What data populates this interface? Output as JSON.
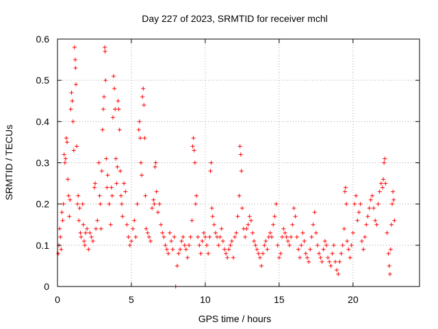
{
  "chart_data": {
    "type": "scatter",
    "title": "Day 227 of 2023, SRMTID for receiver mchl",
    "xlabel": "GPS time / hours",
    "ylabel": "SRMTID / TECUs",
    "xlim": [
      0,
      24.5
    ],
    "ylim": [
      0,
      0.6
    ],
    "xticks": [
      0,
      5,
      10,
      15,
      20
    ],
    "xtick_labels": [
      "0",
      "5",
      "10",
      "15",
      "20"
    ],
    "yticks": [
      0,
      0.1,
      0.2,
      0.3,
      0.4,
      0.5,
      0.6
    ],
    "ytick_labels": [
      "0",
      "0.1",
      "0.2",
      "0.3",
      "0.4",
      "0.5",
      "0.6"
    ],
    "grid": true,
    "marker": "+",
    "series": [
      {
        "name": "SRMTID",
        "color": "#ff0000",
        "points": [
          [
            0.05,
            0.08
          ],
          [
            0.1,
            0.1
          ],
          [
            0.15,
            0.14
          ],
          [
            0.2,
            0.12
          ],
          [
            0.25,
            0.09
          ],
          [
            0.3,
            0.18
          ],
          [
            0.35,
            0.16
          ],
          [
            0.4,
            0.2
          ],
          [
            0.45,
            0.32
          ],
          [
            0.5,
            0.3
          ],
          [
            0.55,
            0.31
          ],
          [
            0.6,
            0.36
          ],
          [
            0.65,
            0.35
          ],
          [
            0.7,
            0.26
          ],
          [
            0.75,
            0.22
          ],
          [
            0.8,
            0.17
          ],
          [
            0.85,
            0.21
          ],
          [
            0.9,
            0.43
          ],
          [
            0.95,
            0.47
          ],
          [
            1.0,
            0.45
          ],
          [
            1.05,
            0.4
          ],
          [
            1.1,
            0.33
          ],
          [
            1.15,
            0.58
          ],
          [
            1.2,
            0.55
          ],
          [
            1.22,
            0.53
          ],
          [
            1.25,
            0.49
          ],
          [
            1.3,
            0.34
          ],
          [
            1.35,
            0.2
          ],
          [
            1.4,
            0.22
          ],
          [
            1.45,
            0.16
          ],
          [
            1.5,
            0.19
          ],
          [
            1.55,
            0.13
          ],
          [
            1.6,
            0.12
          ],
          [
            1.7,
            0.2
          ],
          [
            1.75,
            0.15
          ],
          [
            1.8,
            0.11
          ],
          [
            1.85,
            0.1
          ],
          [
            1.9,
            0.13
          ],
          [
            2.0,
            0.14
          ],
          [
            2.1,
            0.09
          ],
          [
            2.2,
            0.13
          ],
          [
            2.3,
            0.12
          ],
          [
            2.4,
            0.11
          ],
          [
            2.5,
            0.24
          ],
          [
            2.55,
            0.25
          ],
          [
            2.6,
            0.14
          ],
          [
            2.7,
            0.16
          ],
          [
            2.8,
            0.3
          ],
          [
            2.85,
            0.22
          ],
          [
            2.9,
            0.2
          ],
          [
            2.95,
            0.14
          ],
          [
            3.0,
            0.28
          ],
          [
            3.05,
            0.38
          ],
          [
            3.1,
            0.43
          ],
          [
            3.15,
            0.46
          ],
          [
            3.2,
            0.58
          ],
          [
            3.22,
            0.57
          ],
          [
            3.25,
            0.5
          ],
          [
            3.3,
            0.31
          ],
          [
            3.35,
            0.24
          ],
          [
            3.4,
            0.27
          ],
          [
            3.5,
            0.2
          ],
          [
            3.6,
            0.15
          ],
          [
            3.65,
            0.24
          ],
          [
            3.7,
            0.22
          ],
          [
            3.75,
            0.41
          ],
          [
            3.8,
            0.51
          ],
          [
            3.85,
            0.48
          ],
          [
            3.9,
            0.43
          ],
          [
            3.95,
            0.31
          ],
          [
            4.0,
            0.25
          ],
          [
            4.05,
            0.29
          ],
          [
            4.1,
            0.45
          ],
          [
            4.15,
            0.43
          ],
          [
            4.2,
            0.38
          ],
          [
            4.25,
            0.28
          ],
          [
            4.3,
            0.22
          ],
          [
            4.35,
            0.2
          ],
          [
            4.4,
            0.17
          ],
          [
            4.5,
            0.25
          ],
          [
            4.6,
            0.23
          ],
          [
            4.7,
            0.15
          ],
          [
            4.8,
            0.12
          ],
          [
            4.9,
            0.1
          ],
          [
            5.0,
            0.11
          ],
          [
            5.1,
            0.14
          ],
          [
            5.2,
            0.16
          ],
          [
            5.3,
            0.12
          ],
          [
            5.4,
            0.2
          ],
          [
            5.5,
            0.38
          ],
          [
            5.55,
            0.4
          ],
          [
            5.6,
            0.36
          ],
          [
            5.65,
            0.3
          ],
          [
            5.7,
            0.27
          ],
          [
            5.75,
            0.46
          ],
          [
            5.8,
            0.48
          ],
          [
            5.85,
            0.44
          ],
          [
            5.9,
            0.36
          ],
          [
            5.95,
            0.22
          ],
          [
            6.0,
            0.14
          ],
          [
            6.1,
            0.13
          ],
          [
            6.2,
            0.12
          ],
          [
            6.3,
            0.11
          ],
          [
            6.4,
            0.19
          ],
          [
            6.5,
            0.21
          ],
          [
            6.55,
            0.2
          ],
          [
            6.6,
            0.29
          ],
          [
            6.65,
            0.3
          ],
          [
            6.7,
            0.23
          ],
          [
            6.8,
            0.18
          ],
          [
            6.9,
            0.2
          ],
          [
            7.0,
            0.15
          ],
          [
            7.1,
            0.13
          ],
          [
            7.2,
            0.12
          ],
          [
            7.3,
            0.1
          ],
          [
            7.4,
            0.09
          ],
          [
            7.5,
            0.08
          ],
          [
            7.6,
            0.13
          ],
          [
            7.7,
            0.11
          ],
          [
            7.8,
            0.09
          ],
          [
            7.9,
            0.12
          ],
          [
            8.0,
            0.0
          ],
          [
            8.1,
            0.05
          ],
          [
            8.2,
            0.08
          ],
          [
            8.3,
            0.09
          ],
          [
            8.4,
            0.11
          ],
          [
            8.5,
            0.12
          ],
          [
            8.6,
            0.1
          ],
          [
            8.7,
            0.09
          ],
          [
            8.8,
            0.07
          ],
          [
            8.9,
            0.1
          ],
          [
            9.0,
            0.12
          ],
          [
            9.1,
            0.16
          ],
          [
            9.15,
            0.34
          ],
          [
            9.2,
            0.36
          ],
          [
            9.25,
            0.33
          ],
          [
            9.3,
            0.3
          ],
          [
            9.35,
            0.2
          ],
          [
            9.4,
            0.22
          ],
          [
            9.5,
            0.12
          ],
          [
            9.6,
            0.1
          ],
          [
            9.7,
            0.08
          ],
          [
            9.8,
            0.11
          ],
          [
            9.9,
            0.13
          ],
          [
            10.0,
            0.12
          ],
          [
            10.1,
            0.1
          ],
          [
            10.2,
            0.08
          ],
          [
            10.3,
            0.12
          ],
          [
            10.35,
            0.28
          ],
          [
            10.4,
            0.3
          ],
          [
            10.45,
            0.19
          ],
          [
            10.5,
            0.17
          ],
          [
            10.6,
            0.15
          ],
          [
            10.7,
            0.13
          ],
          [
            10.8,
            0.12
          ],
          [
            10.9,
            0.1
          ],
          [
            11.0,
            0.12
          ],
          [
            11.1,
            0.14
          ],
          [
            11.2,
            0.11
          ],
          [
            11.3,
            0.09
          ],
          [
            11.4,
            0.08
          ],
          [
            11.5,
            0.07
          ],
          [
            11.6,
            0.09
          ],
          [
            11.7,
            0.1
          ],
          [
            11.8,
            0.11
          ],
          [
            11.9,
            0.07
          ],
          [
            12.0,
            0.12
          ],
          [
            12.1,
            0.13
          ],
          [
            12.2,
            0.17
          ],
          [
            12.3,
            0.22
          ],
          [
            12.35,
            0.34
          ],
          [
            12.4,
            0.32
          ],
          [
            12.45,
            0.28
          ],
          [
            12.5,
            0.19
          ],
          [
            12.6,
            0.14
          ],
          [
            12.7,
            0.12
          ],
          [
            12.8,
            0.14
          ],
          [
            12.9,
            0.15
          ],
          [
            13.0,
            0.17
          ],
          [
            13.1,
            0.16
          ],
          [
            13.2,
            0.13
          ],
          [
            13.3,
            0.11
          ],
          [
            13.4,
            0.1
          ],
          [
            13.5,
            0.09
          ],
          [
            13.6,
            0.08
          ],
          [
            13.7,
            0.07
          ],
          [
            13.8,
            0.05
          ],
          [
            13.9,
            0.08
          ],
          [
            14.0,
            0.1
          ],
          [
            14.1,
            0.11
          ],
          [
            14.2,
            0.09
          ],
          [
            14.3,
            0.12
          ],
          [
            14.4,
            0.13
          ],
          [
            14.5,
            0.12
          ],
          [
            14.6,
            0.15
          ],
          [
            14.7,
            0.17
          ],
          [
            14.8,
            0.2
          ],
          [
            14.9,
            0.1
          ],
          [
            15.0,
            0.07
          ],
          [
            15.1,
            0.08
          ],
          [
            15.2,
            0.12
          ],
          [
            15.3,
            0.14
          ],
          [
            15.4,
            0.13
          ],
          [
            15.5,
            0.12
          ],
          [
            15.6,
            0.11
          ],
          [
            15.7,
            0.1
          ],
          [
            15.8,
            0.12
          ],
          [
            15.9,
            0.15
          ],
          [
            16.0,
            0.19
          ],
          [
            16.1,
            0.17
          ],
          [
            16.2,
            0.12
          ],
          [
            16.3,
            0.09
          ],
          [
            16.4,
            0.07
          ],
          [
            16.5,
            0.1
          ],
          [
            16.6,
            0.13
          ],
          [
            16.7,
            0.11
          ],
          [
            16.8,
            0.08
          ],
          [
            16.9,
            0.07
          ],
          [
            17.0,
            0.06
          ],
          [
            17.1,
            0.09
          ],
          [
            17.2,
            0.12
          ],
          [
            17.3,
            0.15
          ],
          [
            17.4,
            0.18
          ],
          [
            17.5,
            0.13
          ],
          [
            17.6,
            0.1
          ],
          [
            17.7,
            0.08
          ],
          [
            17.8,
            0.07
          ],
          [
            17.9,
            0.06
          ],
          [
            18.0,
            0.09
          ],
          [
            18.1,
            0.11
          ],
          [
            18.2,
            0.1
          ],
          [
            18.3,
            0.07
          ],
          [
            18.4,
            0.06
          ],
          [
            18.5,
            0.05
          ],
          [
            18.6,
            0.08
          ],
          [
            18.7,
            0.1
          ],
          [
            18.8,
            0.06
          ],
          [
            18.9,
            0.04
          ],
          [
            19.0,
            0.03
          ],
          [
            19.1,
            0.06
          ],
          [
            19.2,
            0.08
          ],
          [
            19.3,
            0.1
          ],
          [
            19.4,
            0.14
          ],
          [
            19.45,
            0.23
          ],
          [
            19.5,
            0.24
          ],
          [
            19.55,
            0.2
          ],
          [
            19.6,
            0.11
          ],
          [
            19.7,
            0.09
          ],
          [
            19.8,
            0.07
          ],
          [
            19.9,
            0.1
          ],
          [
            20.0,
            0.13
          ],
          [
            20.1,
            0.2
          ],
          [
            20.2,
            0.22
          ],
          [
            20.3,
            0.16
          ],
          [
            20.4,
            0.18
          ],
          [
            20.5,
            0.2
          ],
          [
            20.6,
            0.11
          ],
          [
            20.7,
            0.09
          ],
          [
            20.8,
            0.12
          ],
          [
            20.9,
            0.15
          ],
          [
            21.0,
            0.17
          ],
          [
            21.1,
            0.19
          ],
          [
            21.2,
            0.21
          ],
          [
            21.3,
            0.22
          ],
          [
            21.4,
            0.19
          ],
          [
            21.5,
            0.16
          ],
          [
            21.6,
            0.15
          ],
          [
            21.7,
            0.2
          ],
          [
            21.8,
            0.23
          ],
          [
            21.9,
            0.25
          ],
          [
            22.0,
            0.24
          ],
          [
            22.05,
            0.26
          ],
          [
            22.1,
            0.3
          ],
          [
            22.15,
            0.31
          ],
          [
            22.2,
            0.25
          ],
          [
            22.3,
            0.13
          ],
          [
            22.4,
            0.08
          ],
          [
            22.45,
            0.05
          ],
          [
            22.5,
            0.03
          ],
          [
            22.55,
            0.09
          ],
          [
            22.6,
            0.15
          ],
          [
            22.65,
            0.2
          ],
          [
            22.7,
            0.23
          ],
          [
            22.75,
            0.21
          ],
          [
            22.8,
            0.16
          ]
        ]
      }
    ]
  }
}
